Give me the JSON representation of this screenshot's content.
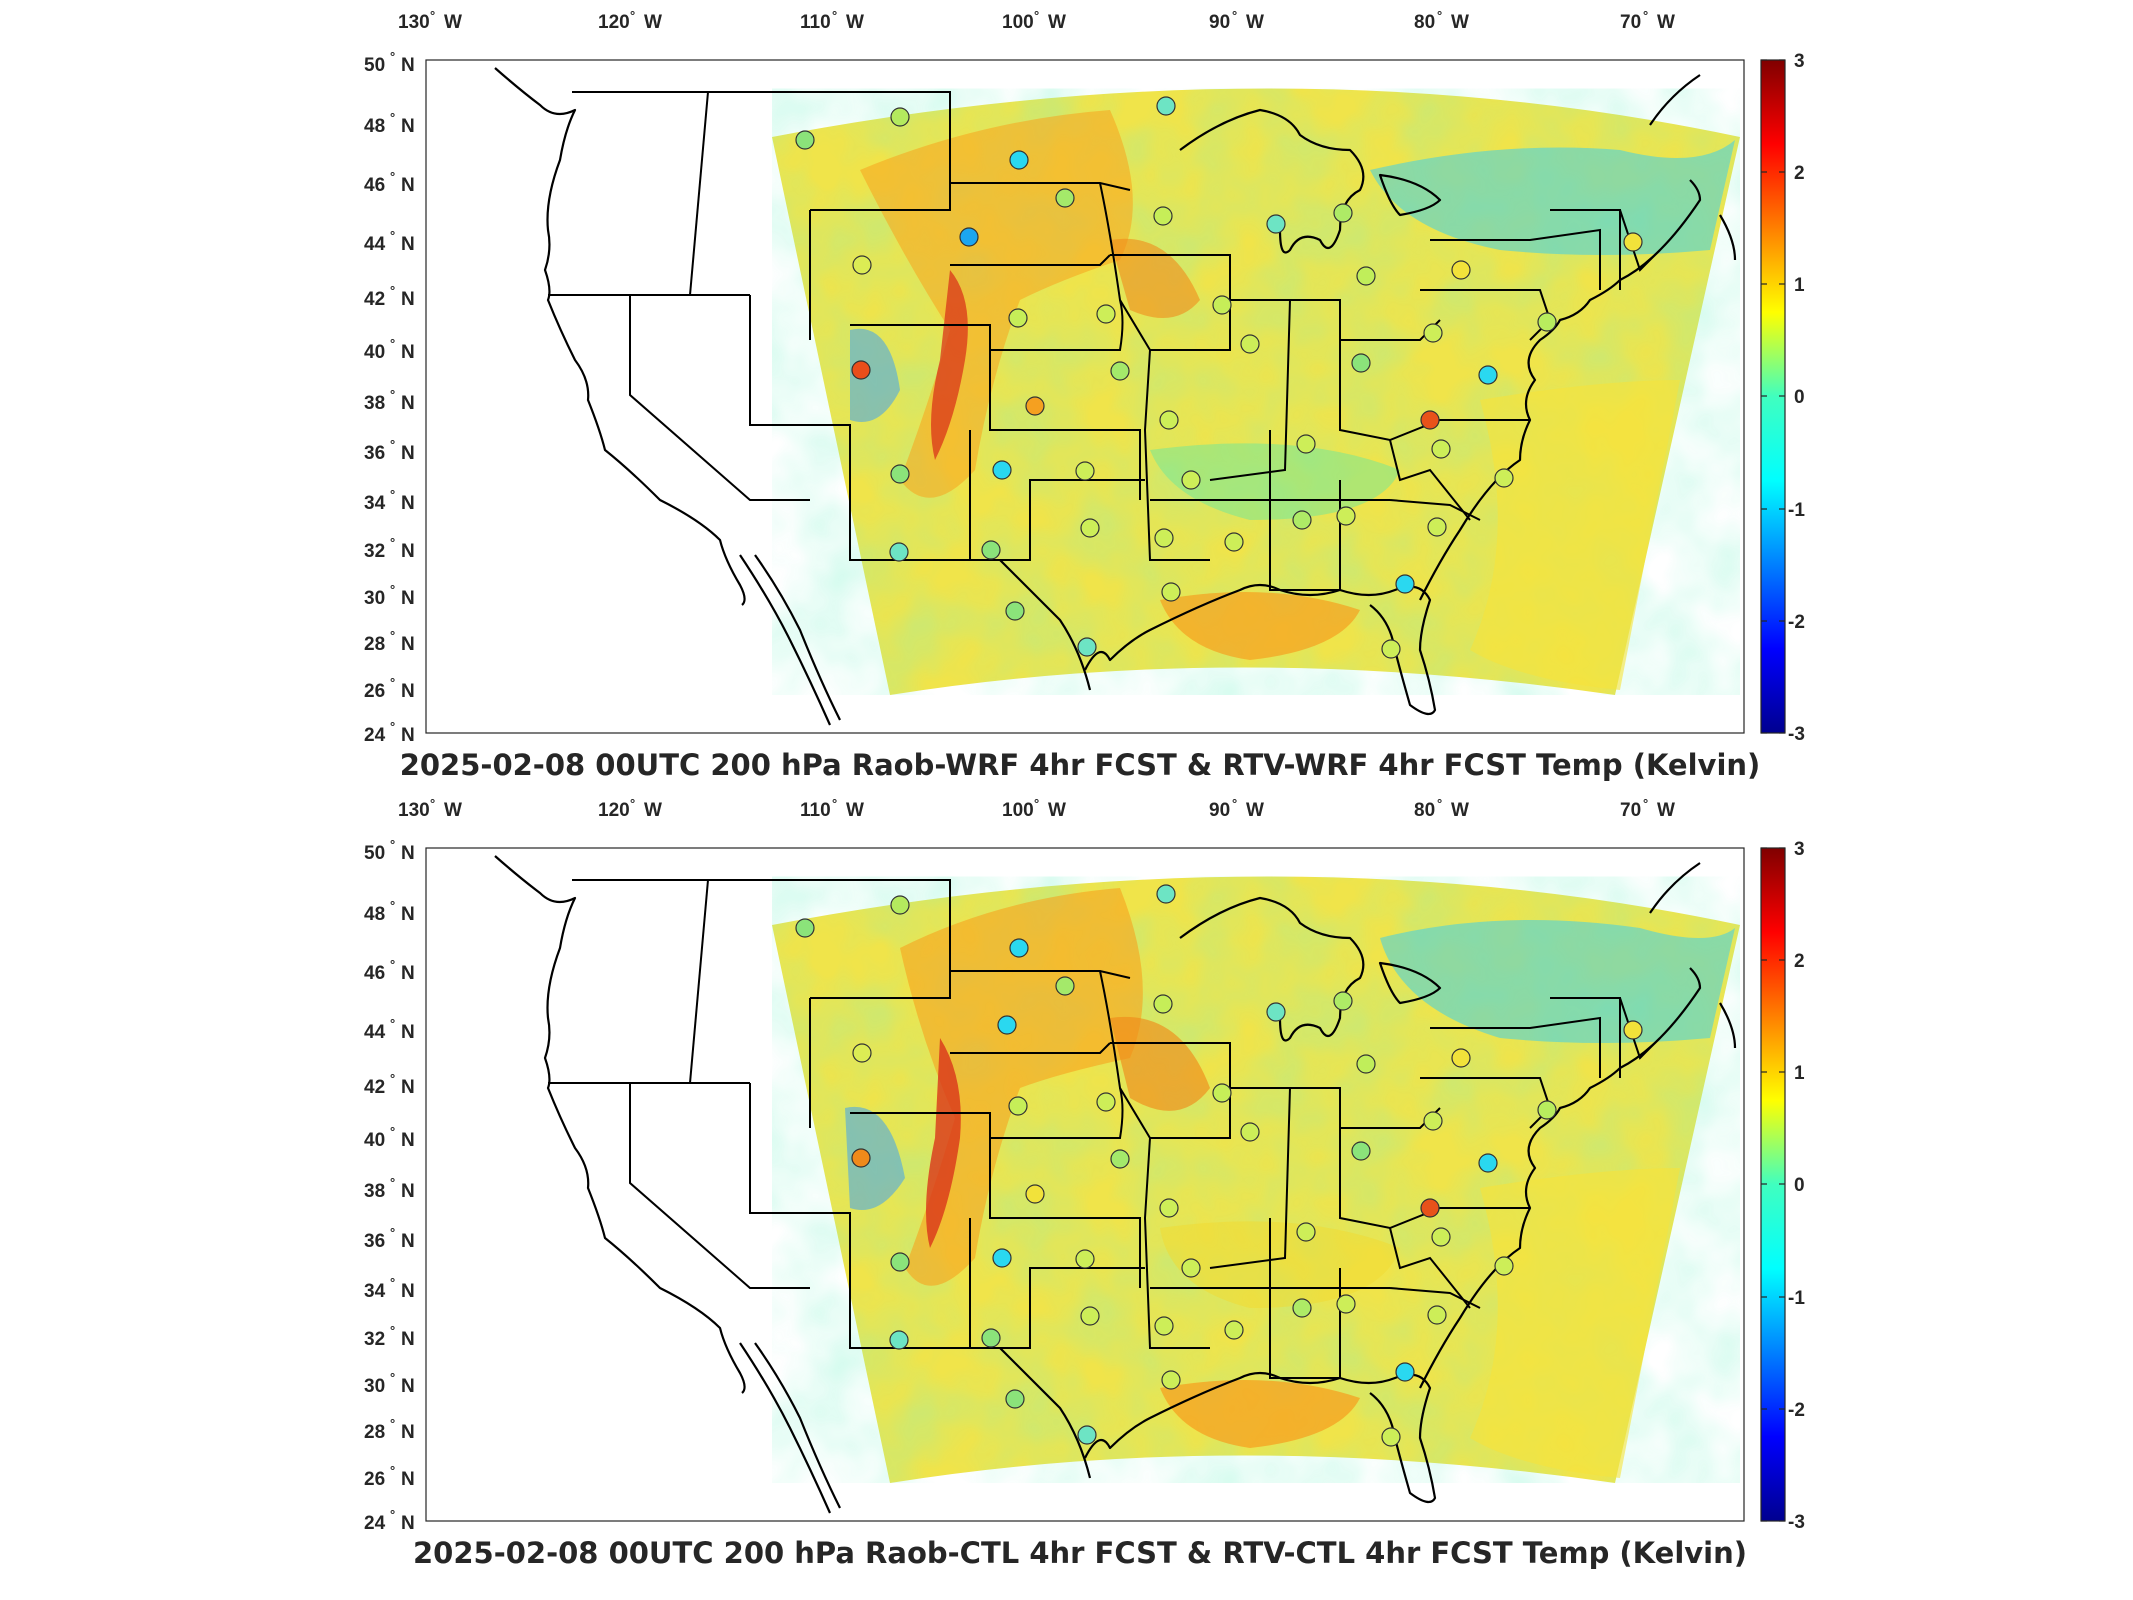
{
  "figure": {
    "panels": [
      {
        "title": "2025-02-08 00UTC 200 hPa Raob-WRF 4hr FCST & RTV-WRF 4hr FCST Temp (Kelvin)",
        "lon_ticks": [
          "130",
          "120",
          "110",
          "100",
          "90",
          "80",
          "70"
        ],
        "lat_ticks": [
          "50",
          "48",
          "46",
          "44",
          "42",
          "40",
          "38",
          "36",
          "34",
          "32",
          "30",
          "28",
          "26",
          "24"
        ],
        "lon_suffix": "W",
        "lat_suffix": "N",
        "colorbar_ticks": [
          "3",
          "2",
          "1",
          "0",
          "-1",
          "-2",
          "-3"
        ]
      },
      {
        "title": "2025-02-08 00UTC 200 hPa Raob-CTL 4hr FCST & RTV-CTL 4hr FCST Temp (Kelvin)",
        "lon_ticks": [
          "130",
          "120",
          "110",
          "100",
          "90",
          "80",
          "70"
        ],
        "lat_ticks": [
          "50",
          "48",
          "46",
          "44",
          "42",
          "40",
          "38",
          "36",
          "34",
          "32",
          "30",
          "28",
          "26",
          "24"
        ],
        "lon_suffix": "W",
        "lat_suffix": "N",
        "colorbar_ticks": [
          "3",
          "2",
          "1",
          "0",
          "-1",
          "-2",
          "-3"
        ]
      }
    ],
    "colormap": "jet",
    "colorbar_range": [
      -3,
      3
    ],
    "colors": {
      "field_base": "#f0e44a",
      "field_warm": "#f7a21e",
      "field_cool": "#7fe8a8",
      "field_cold": "#3fc7f0",
      "map_lines": "#000000"
    }
  }
}
